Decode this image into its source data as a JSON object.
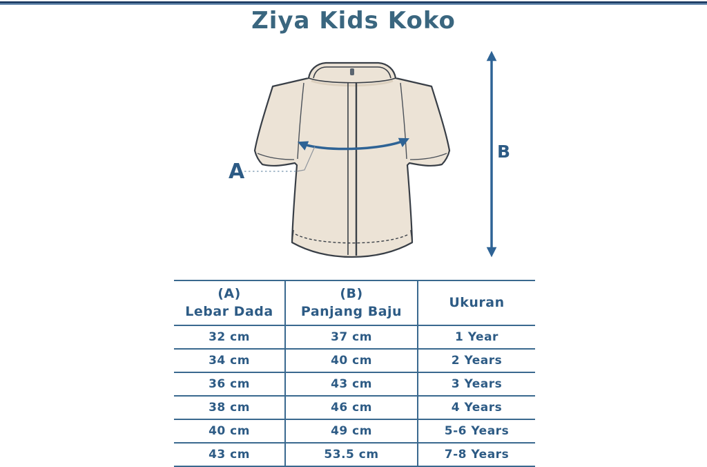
{
  "header": {
    "title": "Ziya Kids Koko"
  },
  "diagram": {
    "label_a": "A",
    "label_b": "B",
    "a_measures": "chest width (curved arrow across chest)",
    "b_measures": "shirt length (vertical arrow)"
  },
  "size_table": {
    "columns": [
      {
        "code": "(A)",
        "label": "Lebar Dada"
      },
      {
        "code": "(B)",
        "label": "Panjang Baju"
      },
      {
        "label": "Ukuran"
      }
    ],
    "rows": [
      {
        "lebar_dada": "32 cm",
        "panjang_baju": "37 cm",
        "ukuran": "1 Year"
      },
      {
        "lebar_dada": "34 cm",
        "panjang_baju": "40 cm",
        "ukuran": "2 Years"
      },
      {
        "lebar_dada": "36 cm",
        "panjang_baju": "43 cm",
        "ukuran": "3 Years"
      },
      {
        "lebar_dada": "38 cm",
        "panjang_baju": "46 cm",
        "ukuran": "4 Years"
      },
      {
        "lebar_dada": "40 cm",
        "panjang_baju": "49 cm",
        "ukuran": "5-6 Years"
      },
      {
        "lebar_dada": "43 cm",
        "panjang_baju": "53.5 cm",
        "ukuran": "7-8 Years"
      }
    ]
  },
  "colors": {
    "title_text": "#3a667f",
    "table_text": "#2d5b85",
    "table_line": "#39688e",
    "arrow": "#2e6395",
    "shirt_fill": "#ece3d6",
    "shirt_outline": "#383e46",
    "top_bar_dark": "#16345c",
    "top_bar_light": "#6286ab"
  }
}
